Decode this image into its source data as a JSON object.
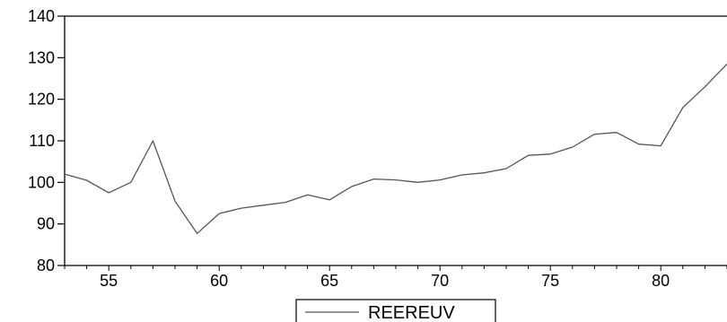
{
  "chart_data": {
    "type": "line",
    "title": "",
    "xlabel": "",
    "ylabel": "",
    "x": [
      53,
      54,
      55,
      56,
      57,
      58,
      59,
      60,
      61,
      62,
      63,
      64,
      65,
      66,
      67,
      68,
      69,
      70,
      71,
      72,
      73,
      74,
      75,
      76,
      77,
      78,
      79,
      80,
      81,
      82,
      83
    ],
    "series": [
      {
        "name": "REEREUV",
        "values": [
          102,
          100.5,
          97.5,
          100,
          110,
          95.5,
          87.7,
          92.5,
          93.8,
          94.5,
          95.2,
          97,
          95.8,
          99,
          100.8,
          100.6,
          100,
          100.6,
          101.8,
          102.3,
          103.3,
          106.5,
          106.8,
          108.5,
          111.6,
          112,
          109.2,
          108.8,
          118,
          123,
          128.5
        ]
      }
    ],
    "xlim": [
      53,
      83
    ],
    "ylim": [
      80,
      140
    ],
    "x_ticks": [
      55,
      60,
      65,
      70,
      75,
      80
    ],
    "y_ticks": [
      80,
      90,
      100,
      110,
      120,
      130,
      140
    ],
    "grid": false,
    "legend": {
      "position": "bottom-center"
    },
    "colors": {
      "line": "#555555",
      "axis": "#000000",
      "background": "#ffffff"
    }
  }
}
